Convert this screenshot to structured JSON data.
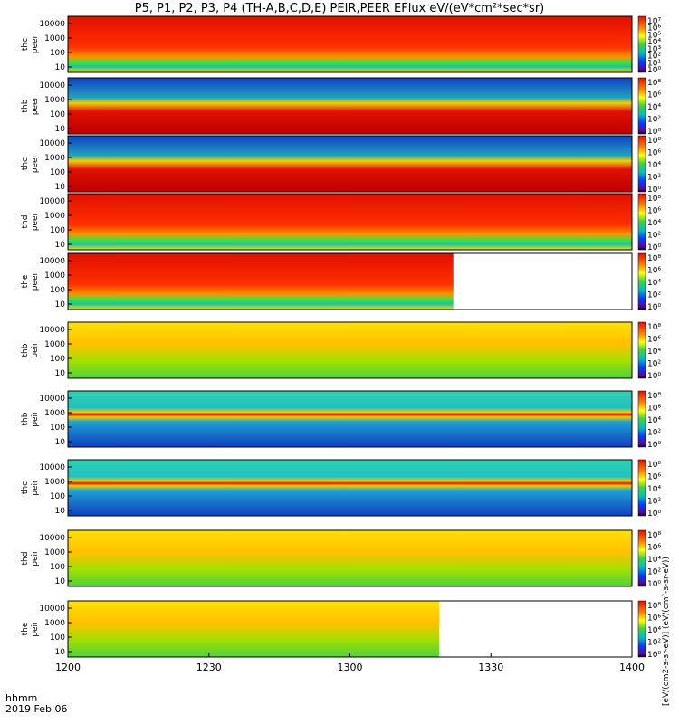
{
  "title": "P5, P1, P2, P3, P4 (TH-A,B,C,D,E) PEIR,PEER EFlux eV/(eV*cm²*sec*sr)",
  "time_axis_label": "hhmm",
  "date_label": "2019 Feb 06",
  "colorbar_label": "[eV/(cm2-s-sr-eV)] (eV/(cm²-s-sr-eV))",
  "chart_data": {
    "type": "heatmap",
    "x_ticks": [
      "1200",
      "1230",
      "1300",
      "1330",
      "1400"
    ],
    "x_range_minutes": [
      0,
      120
    ],
    "y_scale": "log",
    "panels": [
      {
        "name": "thc peer",
        "label": [
          "thc",
          "peer"
        ],
        "yticks": [
          "10000",
          "1000",
          "100",
          "10"
        ],
        "cb": [
          "10⁷",
          "10⁶",
          "10⁵",
          "10⁴",
          "10³",
          "10²",
          "10¹",
          "10⁰"
        ],
        "band": "hot",
        "data_end": 120
      },
      {
        "name": "thb peer",
        "label": [
          "thb",
          "peer"
        ],
        "yticks": [
          "10000",
          "1000",
          "100",
          "10"
        ],
        "cb": [
          "10⁸",
          "10⁶",
          "10⁴",
          "10²",
          "10⁰"
        ],
        "band": "lowhot",
        "data_end": 120
      },
      {
        "name": "thc peer",
        "label": [
          "thc",
          "peer"
        ],
        "yticks": [
          "10000",
          "1000",
          "100",
          "10"
        ],
        "cb": [
          "10⁸",
          "10⁶",
          "10⁴",
          "10²",
          "10⁰"
        ],
        "band": "lowhot",
        "data_end": 120
      },
      {
        "name": "thd peer",
        "label": [
          "thd",
          "peer"
        ],
        "yticks": [
          "10000",
          "1000",
          "100",
          "10"
        ],
        "cb": [
          "10⁸",
          "10⁶",
          "10⁴",
          "10²",
          "10⁰"
        ],
        "band": "hot",
        "data_end": 120
      },
      {
        "name": "the peer",
        "label": [
          "the",
          "peer"
        ],
        "yticks": [
          "10000",
          "1000",
          "100",
          "10"
        ],
        "cb": [
          "10⁸",
          "10⁶",
          "10⁴",
          "10²",
          "10⁰"
        ],
        "band": "hot",
        "data_end": 82
      },
      {
        "name": "thb peir",
        "label": [
          "thb",
          "peir"
        ],
        "yticks": [
          "10000",
          "1000",
          "100",
          "10"
        ],
        "cb": [
          "10⁸",
          "10⁶",
          "10⁴",
          "10²",
          "10⁰"
        ],
        "band": "warm",
        "data_end": 120
      },
      {
        "name": "thb peir",
        "label": [
          "thb",
          "peir"
        ],
        "yticks": [
          "10000",
          "1000",
          "100",
          "10"
        ],
        "cb": [
          "10⁸",
          "10⁶",
          "10⁴",
          "10²",
          "10⁰"
        ],
        "band": "line",
        "data_end": 120
      },
      {
        "name": "thc peir",
        "label": [
          "thc",
          "peir"
        ],
        "yticks": [
          "10000",
          "1000",
          "100",
          "10"
        ],
        "cb": [
          "10⁸",
          "10⁶",
          "10⁴",
          "10²",
          "10⁰"
        ],
        "band": "line",
        "data_end": 120
      },
      {
        "name": "thd peir",
        "label": [
          "thd",
          "peir"
        ],
        "yticks": [
          "10000",
          "1000",
          "100",
          "10"
        ],
        "cb": [
          "10⁸",
          "10⁶",
          "10⁴",
          "10²",
          "10⁰"
        ],
        "band": "warm",
        "data_end": 120
      },
      {
        "name": "the peir",
        "label": [
          "the",
          "peir"
        ],
        "yticks": [
          "10000",
          "1000",
          "100",
          "10"
        ],
        "cb": [
          "10⁸",
          "10⁶",
          "10⁴",
          "10²",
          "10⁰"
        ],
        "band": "warm",
        "data_end": 79
      }
    ]
  }
}
